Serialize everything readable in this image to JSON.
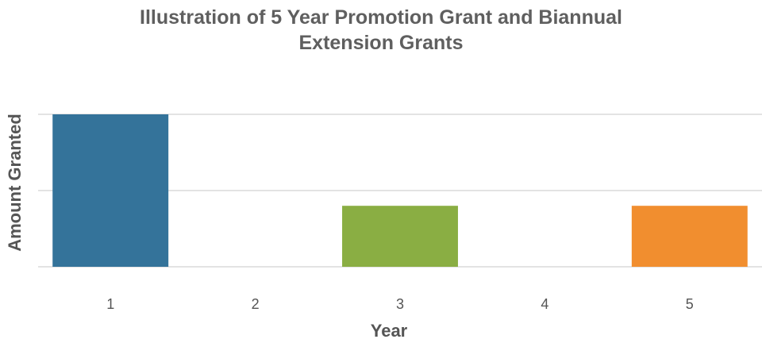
{
  "chart_data": {
    "type": "bar",
    "title": "Illustration of 5 Year Promotion Grant and Biannual Extension Grants",
    "x_label": "Year",
    "y_label": "Amount Granted",
    "categories": [
      "1",
      "2",
      "3",
      "4",
      "5"
    ],
    "values": [
      2,
      0,
      0.8,
      0,
      0.8
    ],
    "colors": [
      "#34739a",
      null,
      "#8aae43",
      null,
      "#f18e2f"
    ],
    "ylim": [
      0,
      2
    ],
    "yticks": [
      0,
      1,
      2
    ],
    "ytick_labels": false,
    "grid": true
  }
}
